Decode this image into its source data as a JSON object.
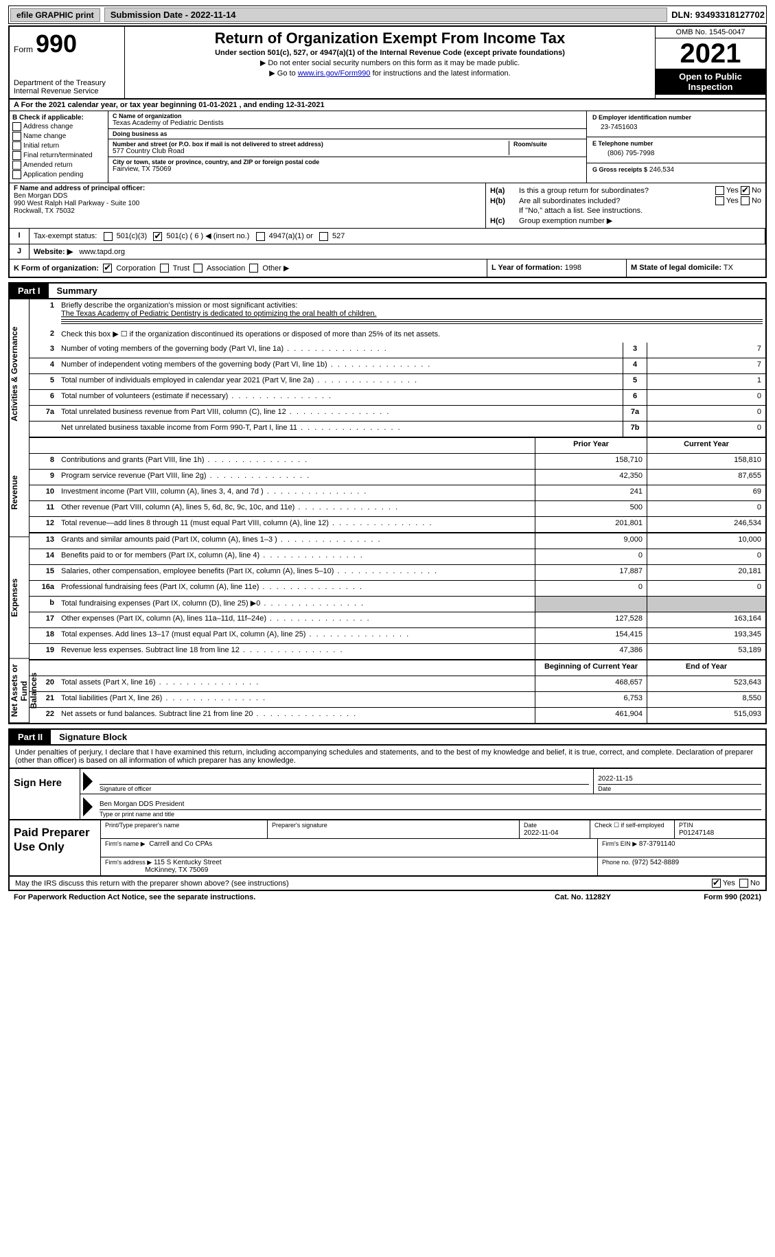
{
  "topbar": {
    "efile": "efile GRAPHIC print",
    "submission_label": "Submission Date - 2022-11-14",
    "dln": "DLN: 93493318127702"
  },
  "header": {
    "form_small": "Form",
    "form_big": "990",
    "dept": "Department of the Treasury",
    "irs": "Internal Revenue Service",
    "title": "Return of Organization Exempt From Income Tax",
    "sub1": "Under section 501(c), 527, or 4947(a)(1) of the Internal Revenue Code (except private foundations)",
    "sub2a": "▶ Do not enter social security numbers on this form as it may be made public.",
    "sub2b": "▶ Go to ",
    "sub2b_link": "www.irs.gov/Form990",
    "sub2c": " for instructions and the latest information.",
    "omb": "OMB No. 1545-0047",
    "year": "2021",
    "inspect": "Open to Public Inspection"
  },
  "rowA": {
    "text": "A For the 2021 calendar year, or tax year beginning 01-01-2021   , and ending 12-31-2021"
  },
  "colB": {
    "label": "B Check if applicable:",
    "items": [
      "Address change",
      "Name change",
      "Initial return",
      "Final return/terminated",
      "Amended return",
      "Application pending"
    ]
  },
  "colC": {
    "name_lbl": "C Name of organization",
    "name": "Texas Academy of Pediatric Dentists",
    "dba_lbl": "Doing business as",
    "dba": "",
    "addr_lbl": "Number and street (or P.O. box if mail is not delivered to street address)",
    "room_lbl": "Room/suite",
    "addr": "577 Country Club Road",
    "city_lbl": "City or town, state or province, country, and ZIP or foreign postal code",
    "city": "Fairview, TX  75069"
  },
  "colD": {
    "ein_lbl": "D Employer identification number",
    "ein": "23-7451603",
    "tel_lbl": "E Telephone number",
    "tel": "(806) 795-7998",
    "gross_lbl": "G Gross receipts $",
    "gross": "246,534"
  },
  "colF": {
    "lbl": "F  Name and address of principal officer:",
    "name": "Ben Morgan DDS",
    "addr1": "990 West Ralph Hall Parkway - Suite 100",
    "addr2": "Rockwall, TX  75032"
  },
  "colH": {
    "ha": "Is this a group return for subordinates?",
    "hb": "Are all subordinates included?",
    "hb2": "If \"No,\" attach a list. See instructions.",
    "hc": "Group exemption number ▶"
  },
  "rowI": {
    "lbl": "Tax-exempt status:",
    "opts": [
      "501(c)(3)",
      "501(c) ( 6 ) ◀ (insert no.)",
      "4947(a)(1) or",
      "527"
    ]
  },
  "rowJ": {
    "lbl": "Website: ▶",
    "val": "www.tapd.org"
  },
  "rowK": {
    "lbl": "K Form of organization:",
    "opts": [
      "Corporation",
      "Trust",
      "Association",
      "Other ▶"
    ]
  },
  "rowL": {
    "lbl": "L Year of formation:",
    "val": "1998"
  },
  "rowM": {
    "lbl": "M State of legal domicile:",
    "val": "TX"
  },
  "part1": {
    "tag": "Part I",
    "title": "Summary",
    "vlabels": [
      "Activities & Governance",
      "Revenue",
      "Expenses",
      "Net Assets or Fund Balances"
    ],
    "mission_lbl": "Briefly describe the organization's mission or most significant activities:",
    "mission": "The Texas Academy of Pediatric Dentistry is dedicated to optimizing the oral health of children.",
    "line2": "Check this box ▶ ☐  if the organization discontinued its operations or disposed of more than 25% of its net assets.",
    "lines_single": [
      {
        "n": "3",
        "d": "Number of voting members of the governing body (Part VI, line 1a)",
        "bn": "3",
        "v": "7"
      },
      {
        "n": "4",
        "d": "Number of independent voting members of the governing body (Part VI, line 1b)",
        "bn": "4",
        "v": "7"
      },
      {
        "n": "5",
        "d": "Total number of individuals employed in calendar year 2021 (Part V, line 2a)",
        "bn": "5",
        "v": "1"
      },
      {
        "n": "6",
        "d": "Total number of volunteers (estimate if necessary)",
        "bn": "6",
        "v": "0"
      },
      {
        "n": "7a",
        "d": "Total unrelated business revenue from Part VIII, column (C), line 12",
        "bn": "7a",
        "v": "0"
      },
      {
        "n": "",
        "d": "Net unrelated business taxable income from Form 990-T, Part I, line 11",
        "bn": "7b",
        "v": "0"
      }
    ],
    "col_hdr": {
      "prior": "Prior Year",
      "current": "Current Year"
    },
    "lines_rev": [
      {
        "n": "8",
        "d": "Contributions and grants (Part VIII, line 1h)",
        "p": "158,710",
        "c": "158,810"
      },
      {
        "n": "9",
        "d": "Program service revenue (Part VIII, line 2g)",
        "p": "42,350",
        "c": "87,655"
      },
      {
        "n": "10",
        "d": "Investment income (Part VIII, column (A), lines 3, 4, and 7d )",
        "p": "241",
        "c": "69"
      },
      {
        "n": "11",
        "d": "Other revenue (Part VIII, column (A), lines 5, 6d, 8c, 9c, 10c, and 11e)",
        "p": "500",
        "c": "0"
      },
      {
        "n": "12",
        "d": "Total revenue—add lines 8 through 11 (must equal Part VIII, column (A), line 12)",
        "p": "201,801",
        "c": "246,534"
      }
    ],
    "lines_exp": [
      {
        "n": "13",
        "d": "Grants and similar amounts paid (Part IX, column (A), lines 1–3 )",
        "p": "9,000",
        "c": "10,000"
      },
      {
        "n": "14",
        "d": "Benefits paid to or for members (Part IX, column (A), line 4)",
        "p": "0",
        "c": "0"
      },
      {
        "n": "15",
        "d": "Salaries, other compensation, employee benefits (Part IX, column (A), lines 5–10)",
        "p": "17,887",
        "c": "20,181"
      },
      {
        "n": "16a",
        "d": "Professional fundraising fees (Part IX, column (A), line 11e)",
        "p": "0",
        "c": "0"
      },
      {
        "n": "b",
        "d": "Total fundraising expenses (Part IX, column (D), line 25) ▶0",
        "p": "",
        "c": "",
        "shade": true
      },
      {
        "n": "17",
        "d": "Other expenses (Part IX, column (A), lines 11a–11d, 11f–24e)",
        "p": "127,528",
        "c": "163,164"
      },
      {
        "n": "18",
        "d": "Total expenses. Add lines 13–17 (must equal Part IX, column (A), line 25)",
        "p": "154,415",
        "c": "193,345"
      },
      {
        "n": "19",
        "d": "Revenue less expenses. Subtract line 18 from line 12",
        "p": "47,386",
        "c": "53,189"
      }
    ],
    "col_hdr2": {
      "prior": "Beginning of Current Year",
      "current": "End of Year"
    },
    "lines_net": [
      {
        "n": "20",
        "d": "Total assets (Part X, line 16)",
        "p": "468,657",
        "c": "523,643"
      },
      {
        "n": "21",
        "d": "Total liabilities (Part X, line 26)",
        "p": "6,753",
        "c": "8,550"
      },
      {
        "n": "22",
        "d": "Net assets or fund balances. Subtract line 21 from line 20",
        "p": "461,904",
        "c": "515,093"
      }
    ]
  },
  "part2": {
    "tag": "Part II",
    "title": "Signature Block",
    "intro": "Under penalties of perjury, I declare that I have examined this return, including accompanying schedules and statements, and to the best of my knowledge and belief, it is true, correct, and complete. Declaration of preparer (other than officer) is based on all information of which preparer has any knowledge."
  },
  "sign": {
    "label": "Sign Here",
    "sig_lbl": "Signature of officer",
    "date_lbl": "Date",
    "date": "2022-11-15",
    "name": "Ben Morgan DDS President",
    "name_lbl": "Type or print name and title"
  },
  "prep": {
    "label": "Paid Preparer Use Only",
    "r1": {
      "a": "Print/Type preparer's name",
      "b": "Preparer's signature",
      "c": "Date",
      "cv": "2022-11-04",
      "d": "Check ☐ if self-employed",
      "e": "PTIN",
      "ev": "P01247148"
    },
    "r2": {
      "a": "Firm's name   ▶",
      "av": "Carrell and Co CPAs",
      "b": "Firm's EIN ▶",
      "bv": "87-3791140"
    },
    "r3": {
      "a": "Firm's address ▶",
      "av": "115 S Kentucky Street",
      "av2": "McKinney, TX  75069",
      "b": "Phone no.",
      "bv": "(972) 542-8889"
    }
  },
  "foot": {
    "q": "May the IRS discuss this return with the preparer shown above? (see instructions)",
    "paper": "For Paperwork Reduction Act Notice, see the separate instructions.",
    "cat": "Cat. No. 11282Y",
    "form": "Form 990 (2021)"
  }
}
